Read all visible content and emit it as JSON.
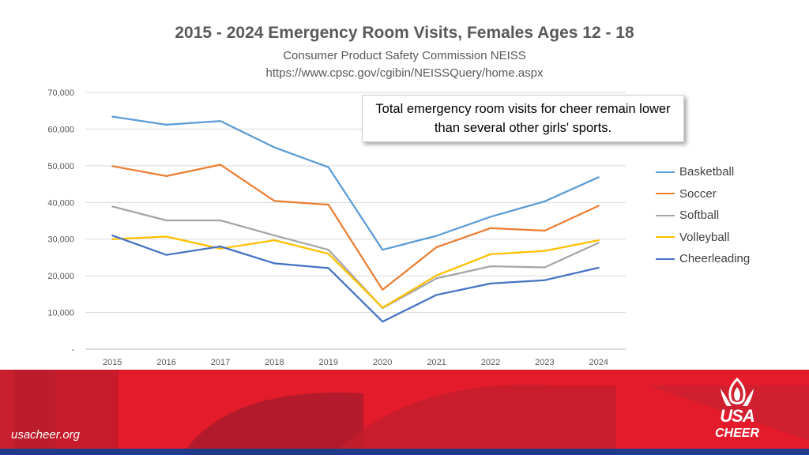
{
  "slide": {
    "title": "2015 - 2024 Emergency Room Visits, Females Ages 12 - 18",
    "subtitle_line1": "Consumer Product Safety Commission NEISS",
    "subtitle_line2": "https://www.cpsc.gov/cgibin/NEISSQuery/home.aspx",
    "callout": "Total emergency room visits for cheer remain lower than several other girls' sports.",
    "footer_url": "usacheer.org",
    "logo_line1": "USA",
    "logo_line2": "CHEER"
  },
  "colors": {
    "footer_red": "#e31b2b",
    "footer_dark_red": "#b31b2c",
    "footer_blue": "#1f3c88"
  },
  "chart_data": {
    "type": "line",
    "x": [
      "2015",
      "2016",
      "2017",
      "2018",
      "2019",
      "2020",
      "2021",
      "2022",
      "2023",
      "2024"
    ],
    "y_ticks": [
      "-",
      "10,000",
      "20,000",
      "30,000",
      "40,000",
      "50,000",
      "60,000",
      "70,000"
    ],
    "ylim": [
      0,
      70000
    ],
    "grid": true,
    "legend_position": "right",
    "series": [
      {
        "name": "Basketball",
        "color": "#5b9bd5",
        "values": [
          63400,
          61200,
          62200,
          55000,
          49600,
          27100,
          30900,
          36100,
          40300,
          46900
        ]
      },
      {
        "name": "Soccer",
        "color": "#ed7d31",
        "values": [
          49900,
          47200,
          50300,
          40400,
          39400,
          16200,
          27800,
          33000,
          32300,
          39100
        ]
      },
      {
        "name": "Softball",
        "color": "#a5a5a5",
        "values": [
          38900,
          35100,
          35100,
          31000,
          27100,
          11200,
          19300,
          22600,
          22300,
          29000
        ]
      },
      {
        "name": "Volleyball",
        "color": "#ffc000",
        "values": [
          30000,
          30700,
          27400,
          29700,
          26000,
          11300,
          20100,
          25900,
          26800,
          29700
        ]
      },
      {
        "name": "Cheerleading",
        "color": "#4472c4",
        "values": [
          31000,
          25700,
          28000,
          23400,
          22100,
          7500,
          14800,
          17900,
          18800,
          22200
        ]
      }
    ]
  }
}
